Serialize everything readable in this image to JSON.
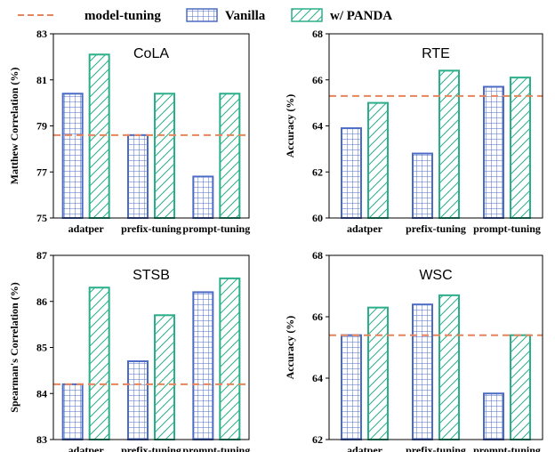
{
  "legend": {
    "entries": [
      {
        "label": "model-tuning",
        "kind": "dashed-line",
        "color": "#E8845C"
      },
      {
        "label": "Vanilla",
        "kind": "grid-bar",
        "color": "#4C6BC4"
      },
      {
        "label": "w/ PANDA",
        "kind": "hatch-bar",
        "color": "#2BAE8A"
      }
    ]
  },
  "colors": {
    "vanilla": "#4C6BC4",
    "panda": "#2BAE8A",
    "baseline": "#E8845C"
  },
  "chart_data": [
    {
      "type": "bar",
      "title": "CoLA",
      "ylabel": "Matthew Correlation (%)",
      "categories": [
        "adatper",
        "prefix-tuning",
        "prompt-tuning"
      ],
      "ylim": [
        75,
        83
      ],
      "yticks": [
        75,
        77,
        79,
        81,
        83
      ],
      "series": [
        {
          "name": "Vanilla",
          "values": [
            80.4,
            78.6,
            76.8
          ]
        },
        {
          "name": "w/ PANDA",
          "values": [
            82.1,
            80.4,
            80.4
          ]
        }
      ],
      "baseline": {
        "name": "model-tuning",
        "value": 78.6
      }
    },
    {
      "type": "bar",
      "title": "RTE",
      "ylabel": "Accuracy (%)",
      "categories": [
        "adatper",
        "prefix-tuning",
        "prompt-tuning"
      ],
      "ylim": [
        60,
        68
      ],
      "yticks": [
        60,
        62,
        64,
        66,
        68
      ],
      "series": [
        {
          "name": "Vanilla",
          "values": [
            63.9,
            62.8,
            65.7
          ]
        },
        {
          "name": "w/ PANDA",
          "values": [
            65.0,
            66.4,
            66.1
          ]
        }
      ],
      "baseline": {
        "name": "model-tuning",
        "value": 65.3
      }
    },
    {
      "type": "bar",
      "title": "STSB",
      "ylabel": "Spearman's Correlation (%)",
      "categories": [
        "adatper",
        "prefix-tuning",
        "prompt-tuning"
      ],
      "ylim": [
        83,
        87
      ],
      "yticks": [
        83,
        84,
        85,
        86,
        87
      ],
      "series": [
        {
          "name": "Vanilla",
          "values": [
            84.2,
            84.7,
            86.2
          ]
        },
        {
          "name": "w/ PANDA",
          "values": [
            86.3,
            85.7,
            86.5
          ]
        }
      ],
      "baseline": {
        "name": "model-tuning",
        "value": 84.2
      }
    },
    {
      "type": "bar",
      "title": "WSC",
      "ylabel": "Accuracy (%)",
      "categories": [
        "adatper",
        "prefix-tuning",
        "prompt-tuning"
      ],
      "ylim": [
        62,
        68
      ],
      "yticks": [
        62,
        64,
        66,
        68
      ],
      "series": [
        {
          "name": "Vanilla",
          "values": [
            65.4,
            66.4,
            63.5
          ]
        },
        {
          "name": "w/ PANDA",
          "values": [
            66.3,
            66.7,
            65.4
          ]
        }
      ],
      "baseline": {
        "name": "model-tuning",
        "value": 65.4
      }
    }
  ]
}
